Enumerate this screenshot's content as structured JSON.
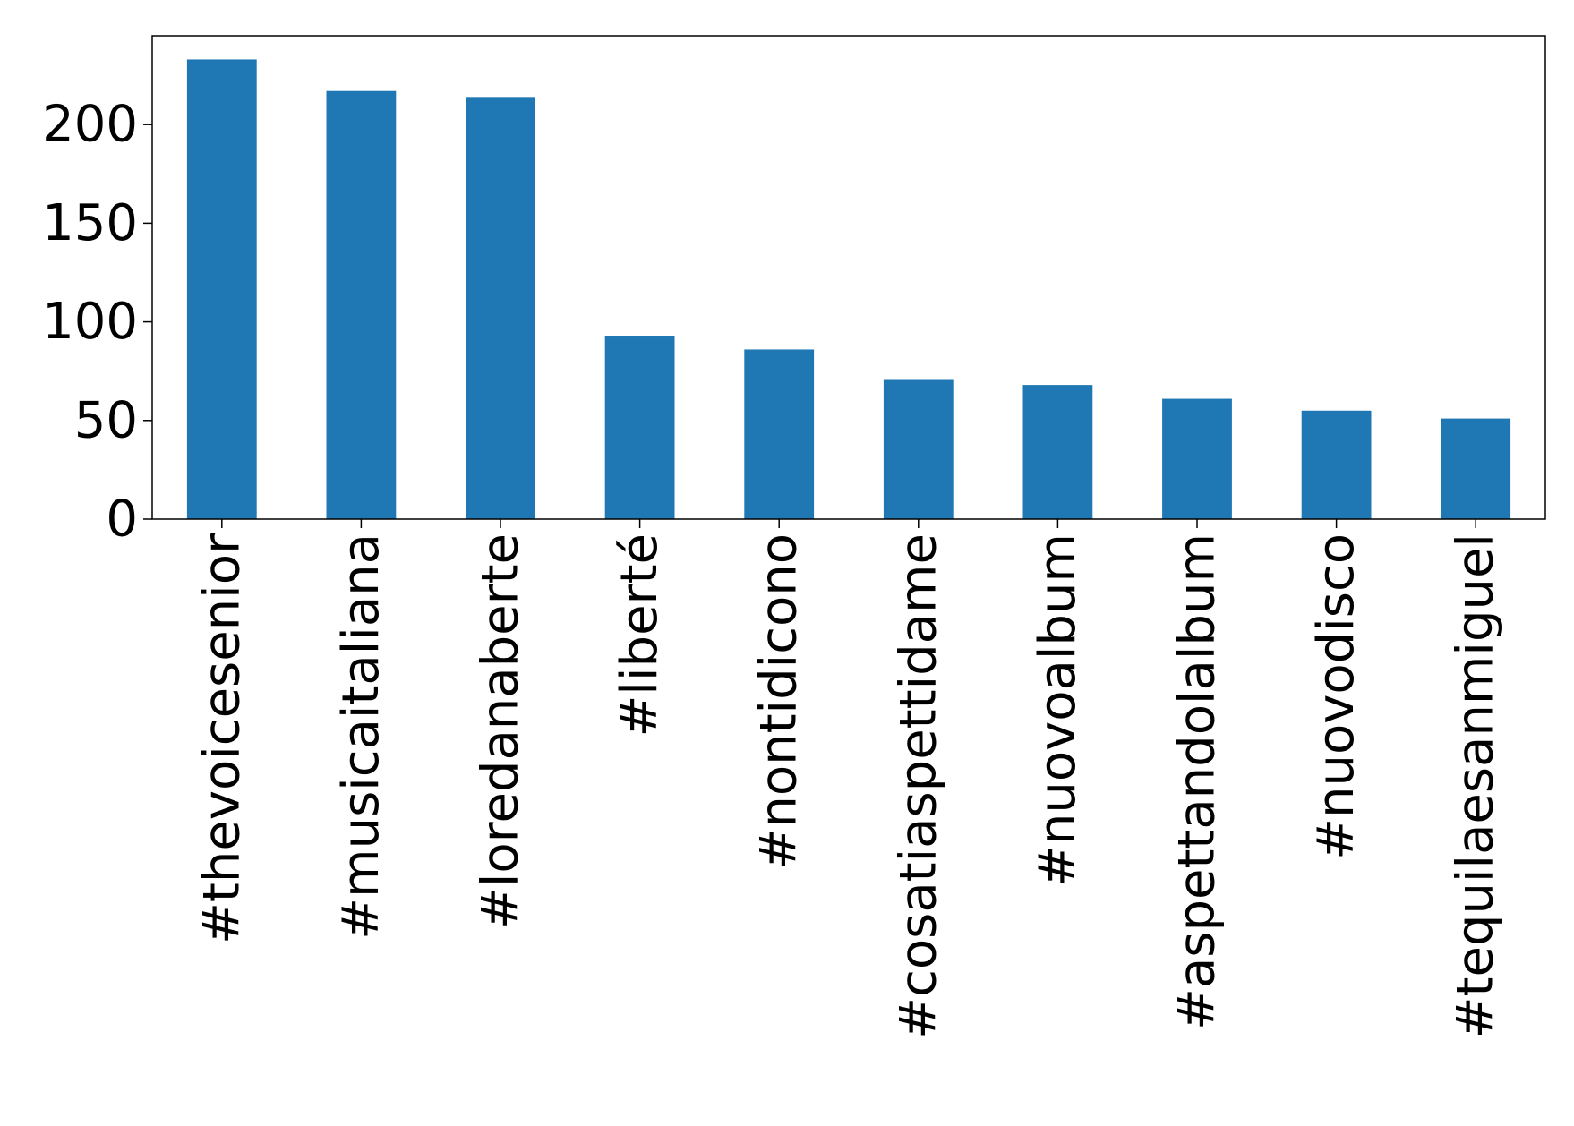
{
  "chart_data": {
    "type": "bar",
    "categories": [
      "#thevoicesenior",
      "#musicaitaliana",
      "#loredanaberte",
      "#liberté",
      "#nontidicono",
      "#cosatiaspettidame",
      "#nuovoalbum",
      "#aspettandolalbum",
      "#nuovodisco",
      "#tequilaesanmiguel"
    ],
    "values": [
      233,
      217,
      214,
      93,
      86,
      71,
      68,
      61,
      55,
      51
    ],
    "yticks": [
      0,
      50,
      100,
      150,
      200
    ],
    "ylim": [
      0,
      245
    ],
    "grid": false,
    "bar_color": "#1f77b4",
    "title": "",
    "xlabel": "",
    "ylabel": ""
  }
}
